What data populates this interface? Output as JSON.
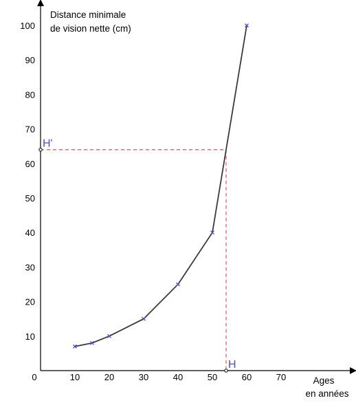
{
  "chart_data": {
    "type": "line",
    "ylabel_lines": [
      "Distance minimale",
      "de vision nette (cm)"
    ],
    "xlabel_lines": [
      "Ages",
      "en années"
    ],
    "x_ticks": [
      0,
      10,
      20,
      30,
      40,
      50,
      60,
      70
    ],
    "y_ticks": [
      10,
      20,
      30,
      40,
      50,
      60,
      70,
      80,
      90,
      100
    ],
    "xlim": [
      0,
      92
    ],
    "ylim": [
      0,
      106
    ],
    "grid": false,
    "series": [
      {
        "points": [
          {
            "x": 10,
            "y": 7
          },
          {
            "x": 15,
            "y": 8
          },
          {
            "x": 20,
            "y": 10
          },
          {
            "x": 30,
            "y": 15
          },
          {
            "x": 40,
            "y": 25
          },
          {
            "x": 50,
            "y": 40
          },
          {
            "x": 60,
            "y": 100
          }
        ]
      }
    ],
    "annotation": {
      "x": 54,
      "y": 64,
      "x_label": "H",
      "y_label": "H'"
    },
    "colors": {
      "line": "#3a3a3a",
      "marker": "#4a4ad8",
      "guide": "#e8505a",
      "axis": "#000000",
      "point_label": "#4a4ad8"
    }
  }
}
